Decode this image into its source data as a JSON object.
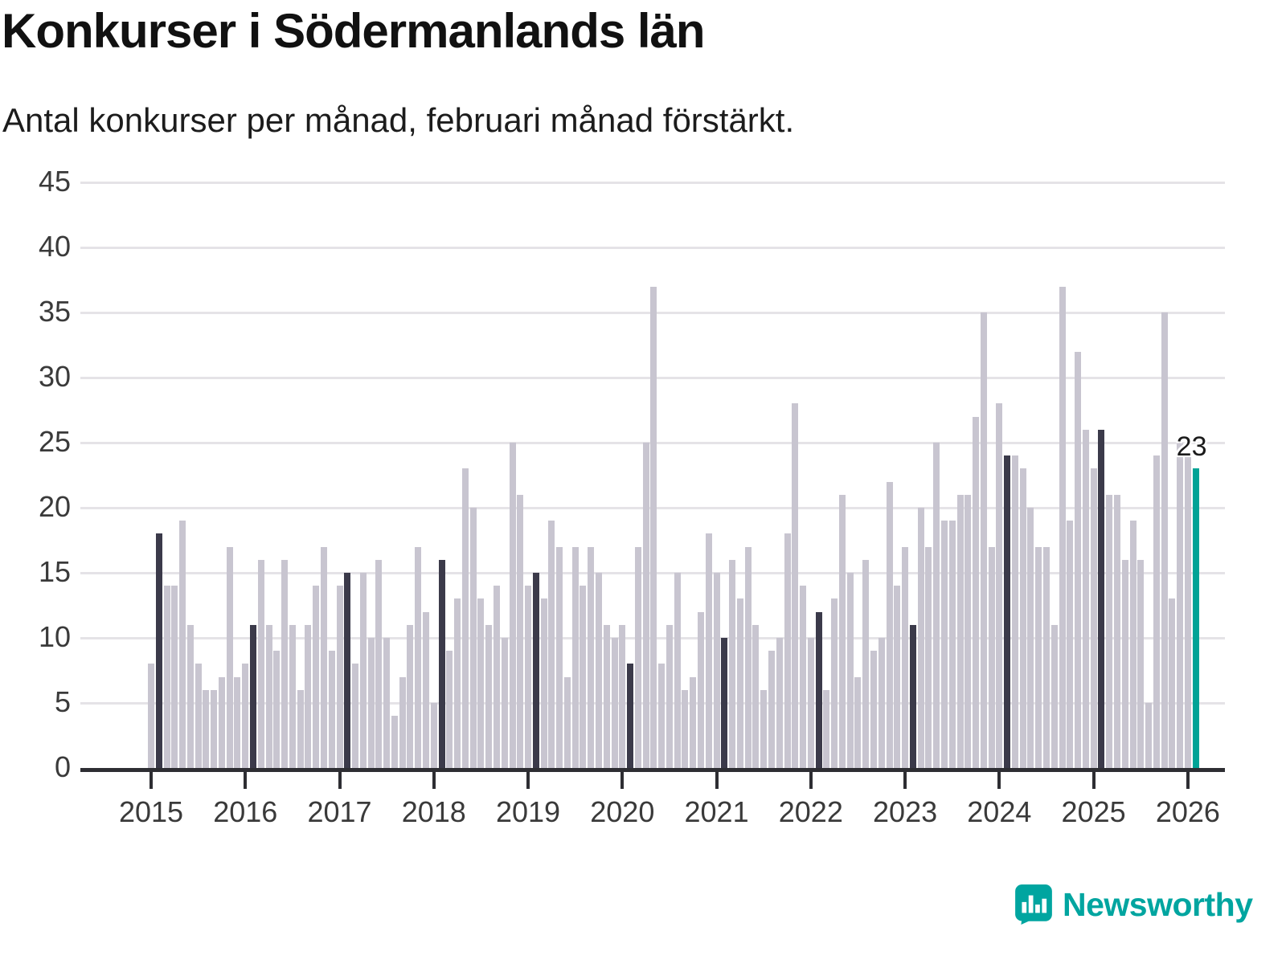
{
  "header": {
    "title": "Konkurser i Södermanlands län",
    "subtitle": "Antal konkurser per månad, februari månad förstärkt."
  },
  "chart_data": {
    "type": "bar",
    "title": "Konkurser i Södermanlands län",
    "subtitle": "Antal konkurser per månad, februari månad förstärkt.",
    "xlabel": "",
    "ylabel": "",
    "ylim": [
      0,
      45
    ],
    "y_ticks": [
      0,
      5,
      10,
      15,
      20,
      25,
      30,
      35,
      40,
      45
    ],
    "x_tick_labels": [
      "2015",
      "2016",
      "2017",
      "2018",
      "2019",
      "2020",
      "2021",
      "2022",
      "2023",
      "2024",
      "2025",
      "2026"
    ],
    "grid": "horizontal",
    "legend": "none",
    "series_name": "Antal konkurser per månad",
    "values_by_year": [
      {
        "year": 2015,
        "values": [
          8,
          18,
          14,
          14,
          19,
          11,
          8,
          6,
          6,
          7,
          17,
          7
        ]
      },
      {
        "year": 2016,
        "values": [
          8,
          11,
          16,
          11,
          9,
          16,
          11,
          6,
          11,
          14,
          17,
          9
        ]
      },
      {
        "year": 2017,
        "values": [
          14,
          15,
          8,
          15,
          10,
          16,
          10,
          4,
          7,
          11,
          17,
          12
        ]
      },
      {
        "year": 2018,
        "values": [
          5,
          16,
          9,
          13,
          23,
          20,
          13,
          11,
          14,
          10,
          25,
          21
        ]
      },
      {
        "year": 2019,
        "values": [
          14,
          15,
          13,
          19,
          17,
          7,
          17,
          14,
          17,
          15,
          11,
          10
        ]
      },
      {
        "year": 2020,
        "values": [
          11,
          8,
          17,
          25,
          37,
          8,
          11,
          15,
          6,
          7,
          12,
          18
        ]
      },
      {
        "year": 2021,
        "values": [
          15,
          10,
          16,
          13,
          17,
          11,
          6,
          9,
          10,
          18,
          28,
          14
        ]
      },
      {
        "year": 2022,
        "values": [
          10,
          12,
          6,
          13,
          21,
          15,
          7,
          16,
          9,
          10,
          22,
          14
        ]
      },
      {
        "year": 2023,
        "values": [
          17,
          11,
          20,
          17,
          25,
          19,
          19,
          21,
          21,
          27,
          35,
          17
        ]
      },
      {
        "year": 2024,
        "values": [
          28,
          24,
          24,
          23,
          20,
          17,
          17,
          11,
          37,
          19,
          32,
          26
        ]
      },
      {
        "year": 2025,
        "values": [
          23,
          26,
          21,
          21,
          16,
          19,
          16,
          5,
          24,
          35,
          13,
          25
        ]
      },
      {
        "year": 2026,
        "values": [
          24,
          23
        ]
      }
    ],
    "highlight_rule": "february-bars-dark",
    "latest_bar": {
      "month": "2026-02",
      "value": 23,
      "label": "23"
    }
  },
  "colors": {
    "bar_default": "#c8c5d0",
    "bar_february": "#3b3a4a",
    "bar_latest": "#00a396",
    "gridline": "#e5e3e7",
    "axis_line": "#2e2e33",
    "axis_text": "#3a3a3a",
    "annotation_text": "#1b1b1b",
    "logo": "#00a5a0"
  },
  "footer": {
    "brand": "Newsworthy"
  }
}
